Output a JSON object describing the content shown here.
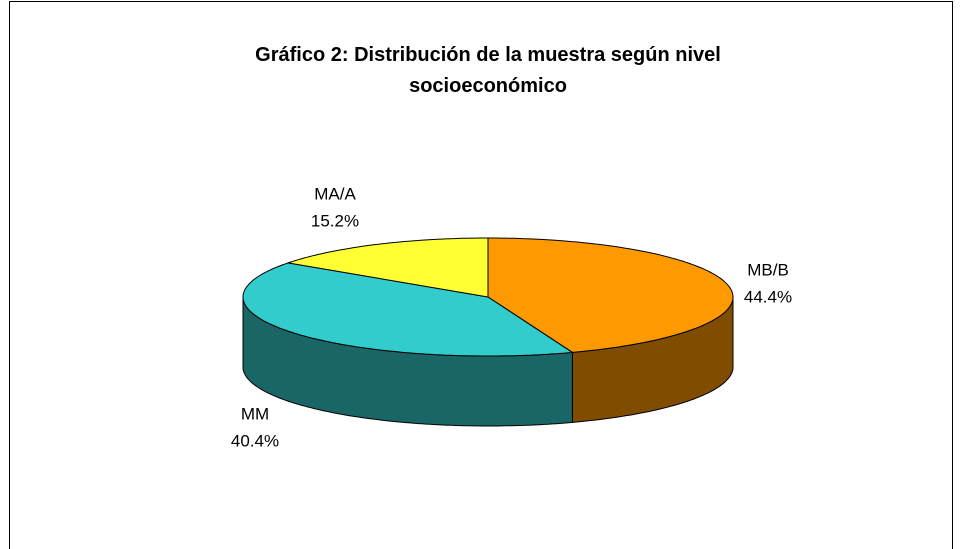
{
  "chart_data": {
    "type": "pie",
    "title": "Gráfico 2: Distribución de la muestra según nivel socioeconómico",
    "categories": [
      "MB/B",
      "MM",
      "MA/A"
    ],
    "values": [
      44.4,
      40.4,
      15.2
    ],
    "value_labels": [
      "44.4%",
      "40.4%",
      "15.2%"
    ],
    "colors": [
      "#FF9900",
      "#33CCCC",
      "#FFFF33"
    ],
    "side_colors": [
      "#7F4C00",
      "#1A6666",
      "#808019"
    ]
  }
}
